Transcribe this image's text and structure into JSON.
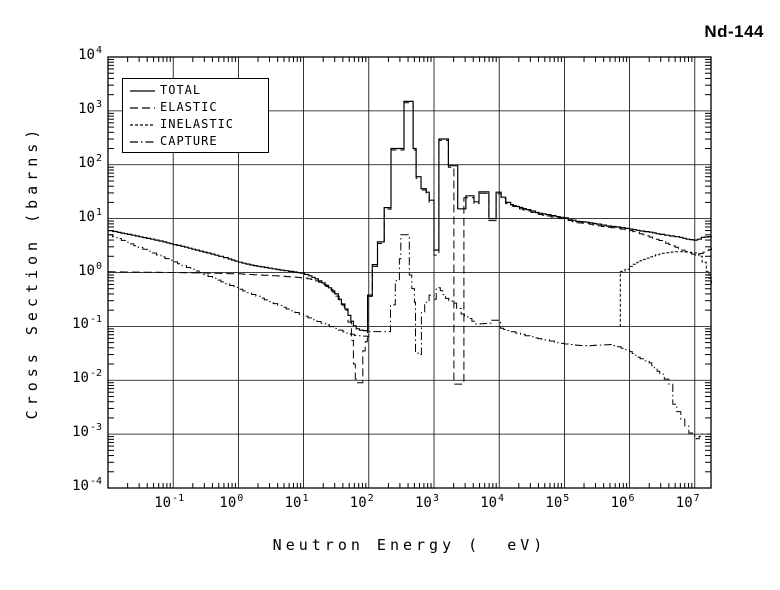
{
  "title": "Nd-144",
  "axes": {
    "base": "10",
    "x": {
      "label": "Neutron Energy (  eV)",
      "tick_exponents": [
        -1,
        0,
        1,
        2,
        3,
        4,
        5,
        6,
        7
      ],
      "min_exponent": -2,
      "max_value": 18000000.0
    },
    "y": {
      "label": "Cross Section (barns)",
      "tick_exponents": [
        4,
        3,
        2,
        1,
        0,
        -1,
        -2,
        -3,
        -4
      ]
    }
  },
  "colors": {
    "line": "#000000",
    "background": "#ffffff"
  },
  "chart_data": {
    "type": "line",
    "title": "Nd-144",
    "xlabel": "Neutron Energy (  eV)",
    "ylabel": "Cross Section (barns)",
    "xscale": "log",
    "yscale": "log",
    "xlim": [
      0.01,
      18000000.0
    ],
    "ylim": [
      0.0001,
      10000.0
    ],
    "grid": true,
    "legend_position": "top-left",
    "series": [
      {
        "name": "total",
        "label": "TOTAL",
        "dash": "",
        "points": [
          [
            0.01,
            6.0
          ],
          [
            0.014,
            5.55
          ],
          [
            0.02,
            5.1
          ],
          [
            0.03,
            4.6
          ],
          [
            0.045,
            4.15
          ],
          [
            0.07,
            3.7
          ],
          [
            0.1,
            3.3
          ],
          [
            0.15,
            2.95
          ],
          [
            0.22,
            2.6
          ],
          [
            0.33,
            2.3
          ],
          [
            0.5,
            2.0
          ],
          [
            0.7,
            1.78
          ],
          [
            1.0,
            1.55
          ],
          [
            1.5,
            1.38
          ],
          [
            2.2,
            1.27
          ],
          [
            3.3,
            1.17
          ],
          [
            5.0,
            1.08
          ],
          [
            7.0,
            1.02
          ],
          [
            9.0,
            0.97
          ],
          [
            12,
            0.87
          ],
          [
            15,
            0.76
          ],
          [
            19,
            0.64
          ],
          [
            24,
            0.52
          ],
          [
            30,
            0.4
          ],
          [
            34,
            0.32
          ],
          [
            38,
            0.26
          ],
          [
            43,
            0.21
          ],
          [
            48,
            0.16
          ],
          [
            53,
            0.125
          ],
          [
            58,
            0.102
          ],
          [
            64,
            0.09
          ],
          [
            72,
            0.085
          ],
          [
            95,
            0.082
          ],
          [
            96,
            0.38
          ],
          [
            112,
            0.38
          ],
          [
            113,
            1.4
          ],
          [
            135,
            1.4
          ],
          [
            136,
            3.7
          ],
          [
            171,
            3.7
          ],
          [
            172,
            16
          ],
          [
            218,
            16
          ],
          [
            219,
            200
          ],
          [
            346,
            200
          ],
          [
            347,
            1500
          ],
          [
            476,
            1500
          ],
          [
            478,
            200
          ],
          [
            530,
            200
          ],
          [
            532,
            60
          ],
          [
            630,
            60
          ],
          [
            632,
            36
          ],
          [
            755,
            36
          ],
          [
            758,
            31
          ],
          [
            840,
            31
          ],
          [
            843,
            22
          ],
          [
            995,
            22
          ],
          [
            1000,
            2.6
          ],
          [
            1185,
            2.6
          ],
          [
            1190,
            300
          ],
          [
            1650,
            300
          ],
          [
            1660,
            96
          ],
          [
            2300,
            96
          ],
          [
            2310,
            15.2
          ],
          [
            3080,
            15.2
          ],
          [
            3090,
            26.5
          ],
          [
            4090,
            26.5
          ],
          [
            4100,
            20.5
          ],
          [
            4890,
            20.5
          ],
          [
            4900,
            31.5
          ],
          [
            6940,
            31.5
          ],
          [
            6950,
            10
          ],
          [
            8940,
            10
          ],
          [
            8950,
            31
          ],
          [
            10600,
            31
          ],
          [
            10700,
            25
          ],
          [
            12600,
            20
          ],
          [
            15000,
            18.2
          ],
          [
            18200,
            16.8
          ],
          [
            26000,
            14.7
          ],
          [
            36000,
            13
          ],
          [
            52000,
            11.9
          ],
          [
            74000,
            10.9
          ],
          [
            100000.0,
            10.3
          ],
          [
            150000.0,
            8.9
          ],
          [
            215000.0,
            8.6
          ],
          [
            310000.0,
            7.9
          ],
          [
            440000.0,
            7.3
          ],
          [
            620000.0,
            7.0
          ],
          [
            1000000.0,
            6.4
          ],
          [
            1430000.0,
            5.9
          ],
          [
            2000000.0,
            5.6
          ],
          [
            2900000.0,
            5.1
          ],
          [
            4100000.0,
            4.75
          ],
          [
            5800000.0,
            4.5
          ],
          [
            7400000.0,
            4.15
          ],
          [
            9500000.0,
            4.0
          ],
          [
            11000000.0,
            4.15
          ],
          [
            12600000.0,
            4.5
          ],
          [
            18000000.0,
            4.7
          ]
        ]
      },
      {
        "name": "elastic",
        "label": "ELASTIC",
        "dash": "8,4",
        "points": [
          [
            0.01,
            1.03
          ],
          [
            0.1,
            1.0
          ],
          [
            0.4,
            0.97
          ],
          [
            1.0,
            0.94
          ],
          [
            2.0,
            0.9
          ],
          [
            4.0,
            0.86
          ],
          [
            7.0,
            0.82
          ],
          [
            10,
            0.79
          ],
          [
            13,
            0.74
          ],
          [
            17,
            0.66
          ],
          [
            22,
            0.55
          ],
          [
            28,
            0.43
          ],
          [
            35,
            0.31
          ],
          [
            42,
            0.2
          ],
          [
            48,
            0.12
          ],
          [
            54,
            0.055
          ],
          [
            58,
            0.02
          ],
          [
            62,
            0.0105
          ],
          [
            64,
            0.009
          ],
          [
            80,
            0.009
          ],
          [
            81,
            0.035
          ],
          [
            88,
            0.052
          ],
          [
            95,
            0.058
          ],
          [
            96,
            0.36
          ],
          [
            112,
            0.36
          ],
          [
            113,
            1.3
          ],
          [
            135,
            1.3
          ],
          [
            136,
            3.45
          ],
          [
            171,
            3.45
          ],
          [
            172,
            15
          ],
          [
            218,
            15
          ],
          [
            219,
            188
          ],
          [
            346,
            188
          ],
          [
            347,
            1420
          ],
          [
            476,
            1420
          ],
          [
            478,
            188
          ],
          [
            530,
            188
          ],
          [
            532,
            56
          ],
          [
            630,
            56
          ],
          [
            632,
            34
          ],
          [
            755,
            34
          ],
          [
            758,
            29
          ],
          [
            840,
            29
          ],
          [
            843,
            20
          ],
          [
            995,
            20
          ],
          [
            1000,
            2.1
          ],
          [
            1185,
            2.1
          ],
          [
            1190,
            283
          ],
          [
            1650,
            283
          ],
          [
            1660,
            90
          ],
          [
            2010,
            90
          ],
          [
            2020,
            0.0085
          ],
          [
            2860,
            0.0085
          ],
          [
            2870,
            24.5
          ],
          [
            4090,
            24.5
          ],
          [
            4100,
            19
          ],
          [
            4890,
            19
          ],
          [
            4900,
            29.5
          ],
          [
            6940,
            29.5
          ],
          [
            6950,
            9.2
          ],
          [
            8940,
            9.2
          ],
          [
            8950,
            29
          ],
          [
            10600,
            29
          ],
          [
            10700,
            23.5
          ],
          [
            12600,
            19
          ],
          [
            18200,
            15.8
          ],
          [
            26000,
            13.9
          ],
          [
            36000,
            12.3
          ],
          [
            52000,
            11.2
          ],
          [
            74000,
            10.3
          ],
          [
            100000.0,
            9.7
          ],
          [
            150000.0,
            8.4
          ],
          [
            215000.0,
            8.1
          ],
          [
            310000.0,
            7.4
          ],
          [
            440000.0,
            6.9
          ],
          [
            620000.0,
            6.6
          ],
          [
            1000000.0,
            6.0
          ],
          [
            1250000.0,
            5.5
          ],
          [
            1600000.0,
            5.0
          ],
          [
            2000000.0,
            4.55
          ],
          [
            2500000.0,
            4.15
          ],
          [
            3200000.0,
            3.7
          ],
          [
            4000000.0,
            3.3
          ],
          [
            5000000.0,
            2.95
          ],
          [
            6300000.0,
            2.6
          ],
          [
            8000000.0,
            2.3
          ],
          [
            10000000.0,
            2.1
          ],
          [
            12000000.0,
            2.25
          ],
          [
            15000000.0,
            2.55
          ],
          [
            18000000.0,
            2.8
          ]
        ]
      },
      {
        "name": "inelastic",
        "label": "INELASTIC",
        "dash": "3,2",
        "points": [
          [
            710000.0,
            0.1
          ],
          [
            720000.0,
            1.05
          ],
          [
            850000.0,
            1.15
          ],
          [
            1000000.0,
            1.3
          ],
          [
            1300000.0,
            1.55
          ],
          [
            1600000.0,
            1.75
          ],
          [
            2000000.0,
            1.95
          ],
          [
            2500000.0,
            2.12
          ],
          [
            3200000.0,
            2.27
          ],
          [
            4000000.0,
            2.37
          ],
          [
            5000000.0,
            2.43
          ],
          [
            6300000.0,
            2.43
          ],
          [
            8000000.0,
            2.38
          ],
          [
            10000000.0,
            2.3
          ],
          [
            11500000.0,
            2.0
          ],
          [
            13000000.0,
            1.55
          ],
          [
            15000000.0,
            1.05
          ],
          [
            16500000.0,
            0.78
          ],
          [
            18000000.0,
            0.58
          ]
        ]
      },
      {
        "name": "capture",
        "label": "CAPTURE",
        "dash": "8,3,1.5,3",
        "points": [
          [
            0.01,
            5.0
          ],
          [
            0.016,
            3.95
          ],
          [
            0.025,
            3.15
          ],
          [
            0.04,
            2.5
          ],
          [
            0.065,
            1.95
          ],
          [
            0.1,
            1.57
          ],
          [
            0.16,
            1.24
          ],
          [
            0.25,
            0.99
          ],
          [
            0.4,
            0.78
          ],
          [
            0.63,
            0.62
          ],
          [
            1.0,
            0.49
          ],
          [
            1.6,
            0.39
          ],
          [
            2.5,
            0.31
          ],
          [
            4.0,
            0.245
          ],
          [
            6.3,
            0.195
          ],
          [
            10,
            0.155
          ],
          [
            16,
            0.123
          ],
          [
            25,
            0.099
          ],
          [
            40,
            0.079
          ],
          [
            60,
            0.068
          ],
          [
            95,
            0.065
          ],
          [
            100,
            0.08
          ],
          [
            185,
            0.08
          ],
          [
            215,
            0.25
          ],
          [
            255,
            0.7
          ],
          [
            295,
            1.8
          ],
          [
            310,
            5.0
          ],
          [
            415,
            5.0
          ],
          [
            418,
            0.9
          ],
          [
            500,
            0.28
          ],
          [
            520,
            0.032
          ],
          [
            625,
            0.03
          ],
          [
            640,
            0.18
          ],
          [
            720,
            0.28
          ],
          [
            840,
            0.38
          ],
          [
            1000,
            0.32
          ],
          [
            1080,
            0.52
          ],
          [
            1250,
            0.46
          ],
          [
            1500,
            0.33
          ],
          [
            1900,
            0.27
          ],
          [
            2600,
            0.17
          ],
          [
            3300,
            0.14
          ],
          [
            4400,
            0.11
          ],
          [
            6800,
            0.115
          ],
          [
            7500,
            0.13
          ],
          [
            10000,
            0.13
          ],
          [
            10500,
            0.092
          ],
          [
            13000,
            0.084
          ],
          [
            18000,
            0.075
          ],
          [
            25000,
            0.067
          ],
          [
            35000,
            0.061
          ],
          [
            50000,
            0.056
          ],
          [
            70000,
            0.051
          ],
          [
            100000.0,
            0.047
          ],
          [
            150000.0,
            0.0445
          ],
          [
            220000.0,
            0.0435
          ],
          [
            320000.0,
            0.045
          ],
          [
            500000.0,
            0.046
          ],
          [
            650000.0,
            0.042
          ],
          [
            850000.0,
            0.037
          ],
          [
            1000000.0,
            0.034
          ],
          [
            1200000.0,
            0.029
          ],
          [
            1450000.0,
            0.025
          ],
          [
            2000000.0,
            0.021
          ],
          [
            2400000.0,
            0.0165
          ],
          [
            2900000.0,
            0.013
          ],
          [
            3400000.0,
            0.0105
          ],
          [
            4000000.0,
            0.0084
          ],
          [
            4600000.0,
            0.0036
          ],
          [
            6100000.0,
            0.0019
          ],
          [
            8100000.0,
            0.00105
          ],
          [
            10500000.0,
            0.00082
          ],
          [
            13000000.0,
            0.001
          ],
          [
            18000000.0,
            0.001
          ]
        ]
      }
    ]
  }
}
